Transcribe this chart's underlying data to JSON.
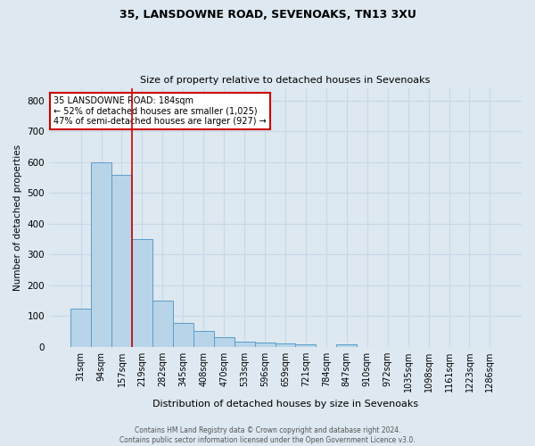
{
  "title1": "35, LANSDOWNE ROAD, SEVENOAKS, TN13 3XU",
  "title2": "Size of property relative to detached houses in Sevenoaks",
  "xlabel": "Distribution of detached houses by size in Sevenoaks",
  "ylabel": "Number of detached properties",
  "categories": [
    "31sqm",
    "94sqm",
    "157sqm",
    "219sqm",
    "282sqm",
    "345sqm",
    "408sqm",
    "470sqm",
    "533sqm",
    "596sqm",
    "659sqm",
    "721sqm",
    "784sqm",
    "847sqm",
    "910sqm",
    "972sqm",
    "1035sqm",
    "1098sqm",
    "1161sqm",
    "1223sqm",
    "1286sqm"
  ],
  "values": [
    125,
    600,
    560,
    350,
    150,
    77,
    53,
    32,
    16,
    13,
    12,
    7,
    0,
    8,
    0,
    0,
    0,
    0,
    0,
    0,
    0
  ],
  "bar_color": "#b8d4e8",
  "bar_edge_color": "#5a9ec8",
  "red_line_x": 2.5,
  "annotation_title": "35 LANSDOWNE ROAD: 184sqm",
  "annotation_line1": "← 52% of detached houses are smaller (1,025)",
  "annotation_line2": "47% of semi-detached houses are larger (927) →",
  "annotation_box_color": "#ffffff",
  "annotation_box_edge": "#cc0000",
  "ylim": [
    0,
    840
  ],
  "yticks": [
    0,
    100,
    200,
    300,
    400,
    500,
    600,
    700,
    800
  ],
  "grid_color": "#c8d8e8",
  "bg_color": "#dde8f0",
  "footer1": "Contains HM Land Registry data © Crown copyright and database right 2024.",
  "footer2": "Contains public sector information licensed under the Open Government Licence v3.0."
}
